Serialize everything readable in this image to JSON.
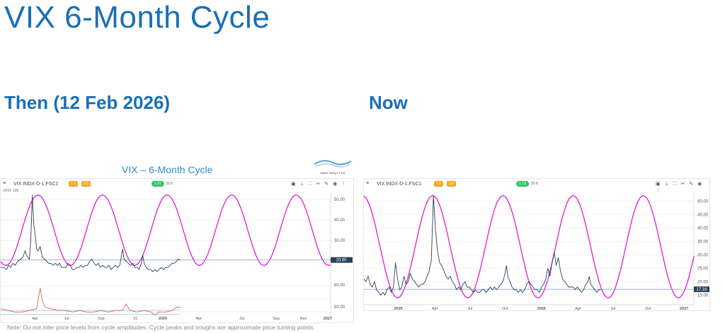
{
  "title": "VIX 6-Month Cycle",
  "then_label": "Then (12 Feb 2026)",
  "now_label": "Now",
  "inner_title": "VIX – 6-Month Cycle",
  "logo_text": "Market Timing & Turns",
  "note": "Note: Do not infer price levels from cycle amplitudes. Cycle peaks and troughs are approximate price turning points.",
  "colors": {
    "cycle": "#e21ad6",
    "price": "#2b4257",
    "rsi": "#e06060",
    "rsi_band": "#9bc4ea",
    "brand_blue": "#1a6fb5",
    "badge_orange": "#f4a623",
    "badge_green": "#2fc36a"
  },
  "toolbar_icons": [
    "save-icon",
    "pin-icon",
    "fullscreen-icon",
    "crop-icon",
    "draw-icon",
    "eye-icon",
    "more-icon"
  ],
  "then_chart": {
    "symbol": "VIX.INDX-D-1:FSC1",
    "badge_1": "1.1",
    "badge_2": "2.0",
    "pill": "1.31",
    "pill_text": "30 ft",
    "indicator_label": "cRSI: 128",
    "last_value": "20.60",
    "menu_glyph": "≡",
    "tools_glyphs": "▣ ⊥ ⛶ ✂ ✎ ◉ ⋮"
  },
  "now_chart": {
    "symbol": "VIX.INDX-D-1:FSC1",
    "badge_1": "1.0",
    "badge_2": "2.0",
    "pill": "1.73",
    "pill_text": "30 ft",
    "last_value": "17.16",
    "menu_glyph": "≡",
    "tools_glyphs": "▣ ⊥ ⛶ ✂ ✎ ◉ ⋮"
  },
  "chart_data": [
    {
      "type": "line",
      "title": "VIX – 6-Month Cycle",
      "x_tick_labels": [
        "Apr",
        "Jul",
        "Sep",
        "31",
        "2026",
        "Apr",
        "Jul",
        "Sep",
        "Nov",
        "2027"
      ],
      "y_tick_labels": [
        "50.00",
        "40.00",
        "30.00"
      ],
      "ylim": [
        14,
        53
      ],
      "last_value": 20.6,
      "series": [
        {
          "values": [
            [
              0,
              17
            ],
            [
              4,
              17
            ],
            [
              8,
              16
            ],
            [
              11,
              18
            ],
            [
              14,
              17
            ],
            [
              17,
              19
            ],
            [
              20,
              18
            ],
            [
              24,
              20
            ],
            [
              28,
              21
            ],
            [
              31,
              22
            ],
            [
              34,
              25
            ],
            [
              36,
              23
            ],
            [
              38,
              22
            ],
            [
              40,
              21
            ],
            [
              42,
              30
            ],
            [
              44,
              52
            ],
            [
              46,
              38
            ],
            [
              48,
              33
            ],
            [
              50,
              26
            ],
            [
              52,
              25
            ],
            [
              55,
              27
            ],
            [
              58,
              22
            ],
            [
              61,
              21
            ],
            [
              64,
              20
            ],
            [
              67,
              19
            ],
            [
              70,
              19
            ],
            [
              73,
              18
            ],
            [
              76,
              19
            ],
            [
              79,
              18
            ],
            [
              82,
              19
            ],
            [
              85,
              17
            ],
            [
              88,
              17
            ],
            [
              91,
              17
            ],
            [
              94,
              19
            ],
            [
              97,
              18
            ],
            [
              100,
              16
            ],
            [
              103,
              16
            ],
            [
              106,
              17
            ],
            [
              109,
              17
            ],
            [
              112,
              18
            ],
            [
              115,
              17
            ],
            [
              118,
              18
            ],
            [
              121,
              18
            ],
            [
              124,
              20
            ],
            [
              127,
              21
            ],
            [
              130,
              19
            ],
            [
              133,
              18
            ],
            [
              136,
              19
            ],
            [
              139,
              17
            ],
            [
              142,
              18
            ],
            [
              145,
              17
            ],
            [
              148,
              17
            ],
            [
              151,
              18
            ],
            [
              154,
              16
            ],
            [
              157,
              17
            ],
            [
              160,
              18
            ],
            [
              163,
              17
            ],
            [
              166,
              18
            ],
            [
              168,
              22
            ],
            [
              170,
              26
            ],
            [
              172,
              21
            ],
            [
              175,
              20
            ],
            [
              178,
              19
            ],
            [
              181,
              18
            ],
            [
              184,
              19
            ],
            [
              187,
              17
            ],
            [
              190,
              17
            ],
            [
              193,
              16
            ],
            [
              196,
              19
            ],
            [
              198,
              23
            ],
            [
              200,
              19
            ],
            [
              203,
              17
            ],
            [
              206,
              16
            ],
            [
              209,
              16
            ],
            [
              212,
              15
            ],
            [
              215,
              16
            ],
            [
              218,
              15
            ],
            [
              221,
              16
            ],
            [
              224,
              17
            ],
            [
              227,
              16
            ],
            [
              230,
              17
            ],
            [
              233,
              17
            ],
            [
              236,
              18
            ],
            [
              239,
              19
            ],
            [
              242,
              19
            ],
            [
              245,
              20
            ],
            [
              248,
              21
            ],
            [
              250,
              20.6
            ]
          ]
        },
        {
          "values": [
            [
              0,
              15
            ],
            [
              10,
              14
            ],
            [
              20,
              13
            ],
            [
              30,
              13
            ],
            [
              40,
              14
            ],
            [
              50,
              15
            ],
            [
              55,
              28
            ],
            [
              58,
              20
            ],
            [
              62,
              16
            ],
            [
              70,
              15
            ],
            [
              80,
              14
            ],
            [
              90,
              14
            ],
            [
              100,
              13
            ],
            [
              110,
              14
            ],
            [
              120,
              13
            ],
            [
              130,
              13
            ],
            [
              140,
              14
            ],
            [
              150,
              13
            ],
            [
              160,
              14
            ],
            [
              170,
              14
            ],
            [
              175,
              18
            ],
            [
              180,
              14
            ],
            [
              190,
              13
            ],
            [
              200,
              14
            ],
            [
              210,
              13
            ],
            [
              215,
              11
            ],
            [
              220,
              13
            ],
            [
              230,
              13
            ],
            [
              240,
              14
            ],
            [
              245,
              16
            ],
            [
              250,
              16
            ]
          ]
        },
        {
          "cycle": true,
          "period": 90,
          "peak_x": [
            52,
            142,
            232,
            322,
            412
          ],
          "min": 18,
          "max": 52
        }
      ]
    },
    {
      "type": "line",
      "x_tick_labels": [
        "2025",
        "Apr",
        "Jul",
        "Oct",
        "2026",
        "Apr",
        "Jul",
        "Oct",
        "2027"
      ],
      "y_tick_labels": [
        "50.00",
        "45.00",
        "40.00",
        "35.00",
        "30.00",
        "25.00",
        "20.00",
        "15.00"
      ],
      "ylim": [
        13,
        53
      ],
      "last_value": 17.16,
      "series": [
        {
          "values": [
            [
              0,
              21
            ],
            [
              3,
              20
            ],
            [
              6,
              22
            ],
            [
              9,
              19
            ],
            [
              12,
              18
            ],
            [
              15,
              20
            ],
            [
              18,
              17
            ],
            [
              21,
              16
            ],
            [
              24,
              15
            ],
            [
              27,
              16
            ],
            [
              30,
              15
            ],
            [
              33,
              17
            ],
            [
              36,
              18
            ],
            [
              39,
              16
            ],
            [
              42,
              18
            ],
            [
              45,
              27
            ],
            [
              48,
              21
            ],
            [
              51,
              17
            ],
            [
              54,
              18
            ],
            [
              57,
              22
            ],
            [
              60,
              19
            ],
            [
              63,
              20
            ],
            [
              66,
              23
            ],
            [
              69,
              21
            ],
            [
              72,
              20
            ],
            [
              75,
              19
            ],
            [
              78,
              18
            ],
            [
              81,
              19
            ],
            [
              84,
              19
            ],
            [
              87,
              20
            ],
            [
              90,
              22
            ],
            [
              93,
              24
            ],
            [
              96,
              28
            ],
            [
              99,
              52
            ],
            [
              102,
              39
            ],
            [
              105,
              31
            ],
            [
              108,
              27
            ],
            [
              111,
              26
            ],
            [
              114,
              24
            ],
            [
              117,
              22
            ],
            [
              120,
              21
            ],
            [
              123,
              22
            ],
            [
              126,
              20
            ],
            [
              129,
              19
            ],
            [
              132,
              17
            ],
            [
              135,
              18
            ],
            [
              138,
              17
            ],
            [
              141,
              19
            ],
            [
              144,
              20
            ],
            [
              147,
              18
            ],
            [
              150,
              18
            ],
            [
              153,
              17
            ],
            [
              156,
              16
            ],
            [
              159,
              17
            ],
            [
              162,
              16
            ],
            [
              165,
              16
            ],
            [
              168,
              17
            ],
            [
              171,
              17
            ],
            [
              174,
              16
            ],
            [
              177,
              17
            ],
            [
              180,
              18
            ],
            [
              183,
              17
            ],
            [
              186,
              18
            ],
            [
              189,
              17
            ],
            [
              192,
              18
            ],
            [
              195,
              19
            ],
            [
              198,
              20
            ],
            [
              201,
              23
            ],
            [
              203,
              26
            ],
            [
              205,
              22
            ],
            [
              208,
              20
            ],
            [
              211,
              18
            ],
            [
              214,
              17
            ],
            [
              217,
              17
            ],
            [
              220,
              16
            ],
            [
              223,
              17
            ],
            [
              226,
              16
            ],
            [
              229,
              17
            ],
            [
              232,
              19
            ],
            [
              235,
              20
            ],
            [
              238,
              19
            ],
            [
              241,
              18
            ],
            [
              244,
              17
            ],
            [
              247,
              17
            ],
            [
              250,
              16
            ],
            [
              253,
              18
            ],
            [
              256,
              19
            ],
            [
              259,
              21
            ],
            [
              262,
              25
            ],
            [
              265,
              22
            ],
            [
              268,
              27
            ],
            [
              271,
              31
            ],
            [
              274,
              26
            ],
            [
              277,
              29
            ],
            [
              280,
              24
            ],
            [
              283,
              21
            ],
            [
              286,
              20
            ],
            [
              289,
              19
            ],
            [
              292,
              18
            ],
            [
              295,
              18
            ],
            [
              298,
              18
            ],
            [
              301,
              17
            ],
            [
              304,
              18
            ],
            [
              307,
              17
            ],
            [
              310,
              16
            ],
            [
              313,
              17
            ],
            [
              316,
              19
            ],
            [
              319,
              20
            ],
            [
              321,
              22
            ],
            [
              323,
              19
            ],
            [
              326,
              18
            ],
            [
              329,
              17
            ],
            [
              332,
              16
            ],
            [
              335,
              17
            ],
            [
              338,
              17.16
            ]
          ]
        },
        {
          "cycle": true,
          "period": 100,
          "peak_x": [
            -2,
            98,
            198,
            298,
            398,
            498
          ],
          "min": 14,
          "max": 52
        }
      ]
    }
  ]
}
